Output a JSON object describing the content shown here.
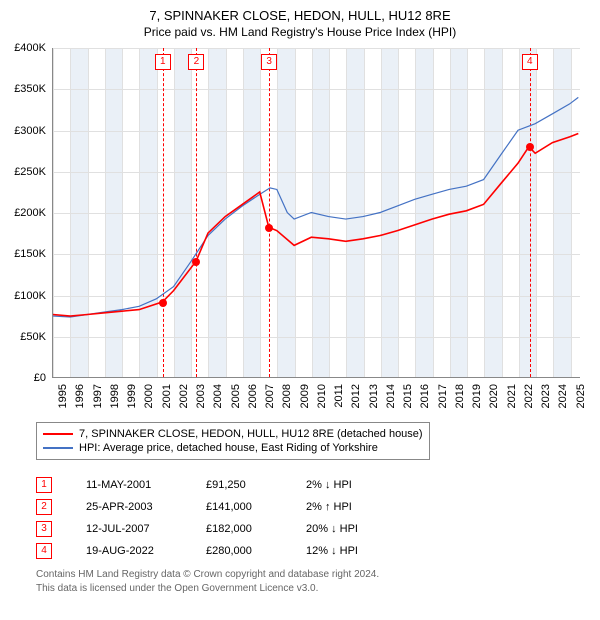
{
  "title": "7, SPINNAKER CLOSE, HEDON, HULL, HU12 8RE",
  "subtitle": "Price paid vs. HM Land Registry's House Price Index (HPI)",
  "chart": {
    "type": "line",
    "background_color": "#ffffff",
    "grid_color": "#e0e0e0",
    "axis_color": "#888888",
    "band_color": "#eaf0f7",
    "font_size_labels": 11,
    "y": {
      "min": 0,
      "max": 400000,
      "step": 50000,
      "ticks": [
        "£0",
        "£50K",
        "£100K",
        "£150K",
        "£200K",
        "£250K",
        "£300K",
        "£350K",
        "£400K"
      ]
    },
    "x": {
      "years": [
        1995,
        1996,
        1997,
        1998,
        1999,
        2000,
        2001,
        2002,
        2003,
        2004,
        2005,
        2006,
        2007,
        2008,
        2009,
        2010,
        2011,
        2012,
        2013,
        2014,
        2015,
        2016,
        2017,
        2018,
        2019,
        2020,
        2021,
        2022,
        2023,
        2024,
        2025
      ],
      "min": 1995,
      "max": 2025.6
    },
    "series": [
      {
        "name": "price_paid",
        "label": "7, SPINNAKER CLOSE, HEDON, HULL, HU12 8RE (detached house)",
        "color": "#ff0000",
        "width": 1.6,
        "points": [
          [
            1995,
            76000
          ],
          [
            1996,
            74000
          ],
          [
            1997,
            76000
          ],
          [
            1998,
            78000
          ],
          [
            1999,
            80000
          ],
          [
            2000,
            82000
          ],
          [
            2001.36,
            91250
          ],
          [
            2002,
            105000
          ],
          [
            2003.31,
            141000
          ],
          [
            2004,
            175000
          ],
          [
            2005,
            195000
          ],
          [
            2006,
            210000
          ],
          [
            2007,
            225000
          ],
          [
            2007.53,
            182000
          ],
          [
            2008,
            178000
          ],
          [
            2009,
            160000
          ],
          [
            2010,
            170000
          ],
          [
            2011,
            168000
          ],
          [
            2012,
            165000
          ],
          [
            2013,
            168000
          ],
          [
            2014,
            172000
          ],
          [
            2015,
            178000
          ],
          [
            2016,
            185000
          ],
          [
            2017,
            192000
          ],
          [
            2018,
            198000
          ],
          [
            2019,
            202000
          ],
          [
            2020,
            210000
          ],
          [
            2021,
            235000
          ],
          [
            2022,
            260000
          ],
          [
            2022.63,
            280000
          ],
          [
            2023,
            272000
          ],
          [
            2024,
            285000
          ],
          [
            2025,
            292000
          ],
          [
            2025.5,
            296000
          ]
        ]
      },
      {
        "name": "hpi",
        "label": "HPI: Average price, detached house, East Riding of Yorkshire",
        "color": "#4472c4",
        "width": 1.2,
        "points": [
          [
            1995,
            74000
          ],
          [
            1996,
            73000
          ],
          [
            1997,
            76000
          ],
          [
            1998,
            79000
          ],
          [
            1999,
            82000
          ],
          [
            2000,
            86000
          ],
          [
            2001,
            95000
          ],
          [
            2002,
            110000
          ],
          [
            2003,
            140000
          ],
          [
            2004,
            172000
          ],
          [
            2005,
            192000
          ],
          [
            2006,
            208000
          ],
          [
            2007,
            222000
          ],
          [
            2007.6,
            230000
          ],
          [
            2008,
            228000
          ],
          [
            2008.6,
            200000
          ],
          [
            2009,
            192000
          ],
          [
            2010,
            200000
          ],
          [
            2011,
            195000
          ],
          [
            2012,
            192000
          ],
          [
            2013,
            195000
          ],
          [
            2014,
            200000
          ],
          [
            2015,
            208000
          ],
          [
            2016,
            216000
          ],
          [
            2017,
            222000
          ],
          [
            2018,
            228000
          ],
          [
            2019,
            232000
          ],
          [
            2020,
            240000
          ],
          [
            2021,
            270000
          ],
          [
            2022,
            300000
          ],
          [
            2023,
            308000
          ],
          [
            2024,
            320000
          ],
          [
            2025,
            332000
          ],
          [
            2025.5,
            340000
          ]
        ]
      }
    ],
    "markers": [
      {
        "n": "1",
        "x": 2001.36,
        "date": "11-MAY-2001",
        "price": "£91,250",
        "diff": "2% ↓ HPI",
        "y": 91250
      },
      {
        "n": "2",
        "x": 2003.31,
        "date": "25-APR-2003",
        "price": "£141,000",
        "diff": "2% ↑ HPI",
        "y": 141000
      },
      {
        "n": "3",
        "x": 2007.53,
        "date": "12-JUL-2007",
        "price": "£182,000",
        "diff": "20% ↓ HPI",
        "y": 182000
      },
      {
        "n": "4",
        "x": 2022.63,
        "date": "19-AUG-2022",
        "price": "£280,000",
        "diff": "12% ↓ HPI",
        "y": 280000
      }
    ]
  },
  "footer": {
    "line1": "Contains HM Land Registry data © Crown copyright and database right 2024.",
    "line2": "This data is licensed under the Open Government Licence v3.0."
  }
}
